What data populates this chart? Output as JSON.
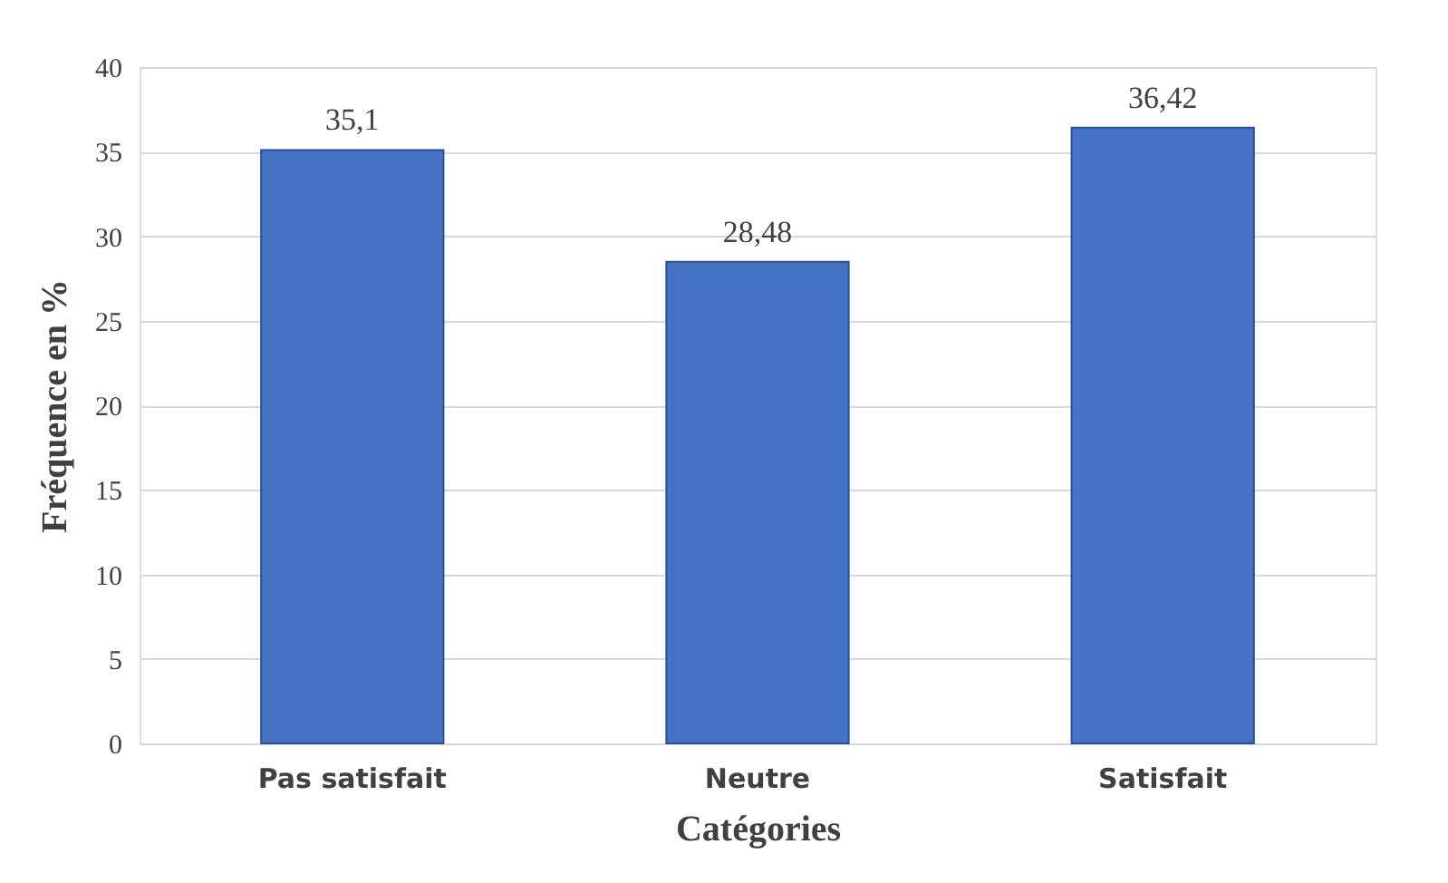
{
  "chart_data": {
    "type": "bar",
    "xlabel": "Catégories",
    "ylabel": "Fréquence en %",
    "categories": [
      "Pas satisfait",
      "Neutre",
      "Satisfait"
    ],
    "values": [
      35.1,
      28.48,
      36.42
    ],
    "value_labels": [
      "35,1",
      "28,48",
      "36,42"
    ],
    "color": "#4472c4",
    "ylim": [
      0,
      40
    ],
    "yticks": [
      0,
      5,
      10,
      15,
      20,
      25,
      30,
      35,
      40
    ],
    "grid": "y"
  }
}
